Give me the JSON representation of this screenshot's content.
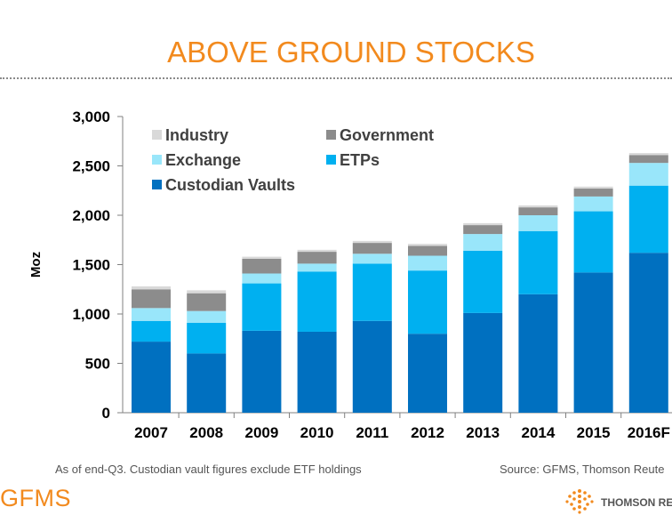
{
  "slide": {
    "title": "ABOVE GROUND STOCKS",
    "footnote_left": "As of end-Q3. Custodian vault figures exclude ETF holdings",
    "footnote_right": "Source: GFMS, Thomson Reute",
    "logo_left": "GFMS",
    "logo_right": "THOMSON REU"
  },
  "chart_data": {
    "type": "bar",
    "stacked": true,
    "title": "",
    "xlabel": "",
    "ylabel": "Moz",
    "ylim": [
      0,
      3000
    ],
    "yticks": [
      0,
      500,
      1000,
      1500,
      2000,
      2500,
      3000
    ],
    "ytick_labels": [
      "0",
      "500",
      "1,000",
      "1,500",
      "2,000",
      "2,500",
      "3,000"
    ],
    "categories": [
      "2007",
      "2008",
      "2009",
      "2010",
      "2011",
      "2012",
      "2013",
      "2014",
      "2015",
      "2016F"
    ],
    "grid": false,
    "legend_position": "top-left",
    "series": [
      {
        "name": "Custodian Vaults",
        "color": "#0070c0",
        "values": [
          720,
          600,
          830,
          820,
          930,
          800,
          1010,
          1200,
          1420,
          1620
        ]
      },
      {
        "name": "ETPs",
        "color": "#00b0f0",
        "values": [
          210,
          310,
          480,
          610,
          580,
          640,
          630,
          640,
          620,
          680
        ]
      },
      {
        "name": "Exchange",
        "color": "#99e6fa",
        "values": [
          130,
          120,
          100,
          80,
          100,
          150,
          170,
          160,
          150,
          230
        ]
      },
      {
        "name": "Government",
        "color": "#8c8c8c",
        "values": [
          190,
          180,
          150,
          120,
          110,
          100,
          90,
          80,
          80,
          80
        ]
      },
      {
        "name": "Industry",
        "color": "#d9d9d9",
        "values": [
          30,
          30,
          20,
          20,
          20,
          20,
          20,
          20,
          20,
          20
        ]
      }
    ],
    "legend_order": [
      "Industry",
      "Government",
      "Exchange",
      "ETPs",
      "Custodian Vaults"
    ]
  }
}
